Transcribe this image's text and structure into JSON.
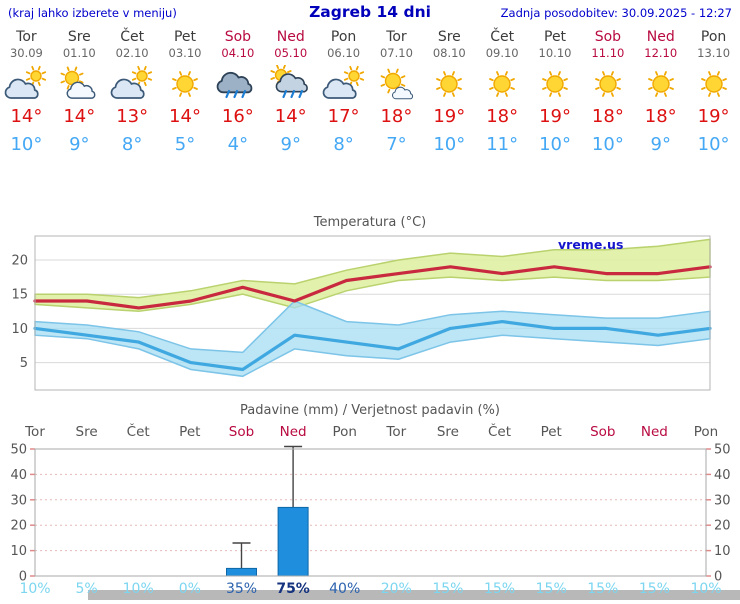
{
  "header": {
    "hint": "(kraj lahko izberete v meniju)",
    "title": "Zagreb 14 dni",
    "updated": "Zadnja posodobitev: 30.09.2025 - 12:27"
  },
  "colors": {
    "header_blue": "#0000cc",
    "title_blue": "#0000bb",
    "day_text": "#3c3c3c",
    "date_text": "#666666",
    "weekend_red": "#b80a40",
    "tmax_red": "#dd1111",
    "tmin_blue": "#44a8f5",
    "chart_title_gray": "#555555",
    "prob_low": "#7cd6f0",
    "prob_mid": "#2b62ae",
    "prob_high": "#15337e",
    "bar_blue": "#1f8fdd",
    "scrollbar_gray": "#b8b8b8"
  },
  "days": [
    {
      "name": "Tor",
      "date": "30.09",
      "weekend": false,
      "icon": "mostly-cloudy",
      "tmax": "14°",
      "tmin": "10°"
    },
    {
      "name": "Sre",
      "date": "01.10",
      "weekend": false,
      "icon": "partly-cloudy",
      "tmax": "14°",
      "tmin": "9°"
    },
    {
      "name": "Čet",
      "date": "02.10",
      "weekend": false,
      "icon": "mostly-cloudy",
      "tmax": "13°",
      "tmin": "8°"
    },
    {
      "name": "Pet",
      "date": "03.10",
      "weekend": false,
      "icon": "sunny",
      "tmax": "14°",
      "tmin": "5°"
    },
    {
      "name": "Sob",
      "date": "04.10",
      "weekend": true,
      "icon": "rain",
      "tmax": "16°",
      "tmin": "4°"
    },
    {
      "name": "Ned",
      "date": "05.10",
      "weekend": true,
      "icon": "showers",
      "tmax": "14°",
      "tmin": "9°"
    },
    {
      "name": "Pon",
      "date": "06.10",
      "weekend": false,
      "icon": "mostly-cloudy",
      "tmax": "17°",
      "tmin": "8°"
    },
    {
      "name": "Tor",
      "date": "07.10",
      "weekend": false,
      "icon": "mostly-sunny",
      "tmax": "18°",
      "tmin": "7°"
    },
    {
      "name": "Sre",
      "date": "08.10",
      "weekend": false,
      "icon": "sunny",
      "tmax": "19°",
      "tmin": "10°"
    },
    {
      "name": "Čet",
      "date": "09.10",
      "weekend": false,
      "icon": "sunny",
      "tmax": "18°",
      "tmin": "11°"
    },
    {
      "name": "Pet",
      "date": "10.10",
      "weekend": false,
      "icon": "sunny",
      "tmax": "19°",
      "tmin": "10°"
    },
    {
      "name": "Sob",
      "date": "11.10",
      "weekend": true,
      "icon": "sunny",
      "tmax": "18°",
      "tmin": "10°"
    },
    {
      "name": "Ned",
      "date": "12.10",
      "weekend": true,
      "icon": "sunny",
      "tmax": "18°",
      "tmin": "9°"
    },
    {
      "name": "Pon",
      "date": "13.10",
      "weekend": false,
      "icon": "sunny",
      "tmax": "19°",
      "tmin": "10°"
    }
  ],
  "chart_data": [
    {
      "type": "line",
      "title": "Temperatura (°C)",
      "watermark": "vreme.us",
      "ylim": [
        1,
        23.5
      ],
      "yticks": [
        5,
        10,
        15,
        20
      ],
      "grid": true,
      "x_labels": [
        "Tor",
        "Sre",
        "Čet",
        "Pet",
        "Sob",
        "Ned",
        "Pon",
        "Tor",
        "Sre",
        "Čet",
        "Pet",
        "Sob",
        "Ned",
        "Pon"
      ],
      "series": [
        {
          "name": "max-temp",
          "color": "#c8293f",
          "band_color": "#dff0a2",
          "band_edge": "#b9d26e",
          "values": [
            14,
            14,
            13,
            14,
            16,
            14,
            17,
            18,
            19,
            18,
            19,
            18,
            18,
            19
          ],
          "upper": [
            15,
            15,
            14.5,
            15.5,
            17,
            16.5,
            18.5,
            20,
            21,
            20.5,
            21.5,
            21.5,
            22,
            23
          ],
          "lower": [
            13.5,
            13,
            12.5,
            13.5,
            15,
            13,
            15.5,
            17,
            17.5,
            17,
            17.5,
            17,
            17,
            17.5
          ]
        },
        {
          "name": "min-temp",
          "color": "#3fa8e0",
          "band_color": "#a6dcf2",
          "band_edge": "#7cc4e8",
          "values": [
            10,
            9,
            8,
            5,
            4,
            9,
            8,
            7,
            10,
            11,
            10,
            10,
            9,
            10
          ],
          "upper": [
            11,
            10.5,
            9.5,
            7,
            6.5,
            14,
            11,
            10.5,
            12,
            12.5,
            12,
            11.5,
            11.5,
            12.5
          ],
          "lower": [
            9,
            8.5,
            7,
            4,
            3,
            7,
            6,
            5.5,
            8,
            9,
            8.5,
            8,
            7.5,
            8.5
          ]
        }
      ]
    },
    {
      "type": "bar",
      "title": "Padavine (mm) / Verjetnost padavin (%)",
      "categories": [
        {
          "label": "Tor",
          "weekend": false
        },
        {
          "label": "Sre",
          "weekend": false
        },
        {
          "label": "Čet",
          "weekend": false
        },
        {
          "label": "Pet",
          "weekend": false
        },
        {
          "label": "Sob",
          "weekend": true
        },
        {
          "label": "Ned",
          "weekend": true
        },
        {
          "label": "Pon",
          "weekend": false
        },
        {
          "label": "Tor",
          "weekend": false
        },
        {
          "label": "Sre",
          "weekend": false
        },
        {
          "label": "Čet",
          "weekend": false
        },
        {
          "label": "Pet",
          "weekend": false
        },
        {
          "label": "Sob",
          "weekend": true
        },
        {
          "label": "Ned",
          "weekend": true
        },
        {
          "label": "Pon",
          "weekend": false
        }
      ],
      "values": [
        0,
        0,
        0,
        0,
        3,
        27,
        0,
        0,
        0,
        0,
        0,
        0,
        0,
        0
      ],
      "max_values": [
        0,
        0,
        0,
        0,
        13,
        51,
        0,
        0,
        0,
        0,
        0,
        0,
        0,
        0
      ],
      "probabilities": [
        "10%",
        "5%",
        "10%",
        "0%",
        "35%",
        "75%",
        "40%",
        "20%",
        "15%",
        "15%",
        "15%",
        "15%",
        "15%",
        "10%"
      ],
      "ylim": [
        0,
        50
      ],
      "yticks": [
        0,
        10,
        20,
        30,
        40,
        50
      ],
      "bar_color": "#1f8fdd"
    }
  ]
}
